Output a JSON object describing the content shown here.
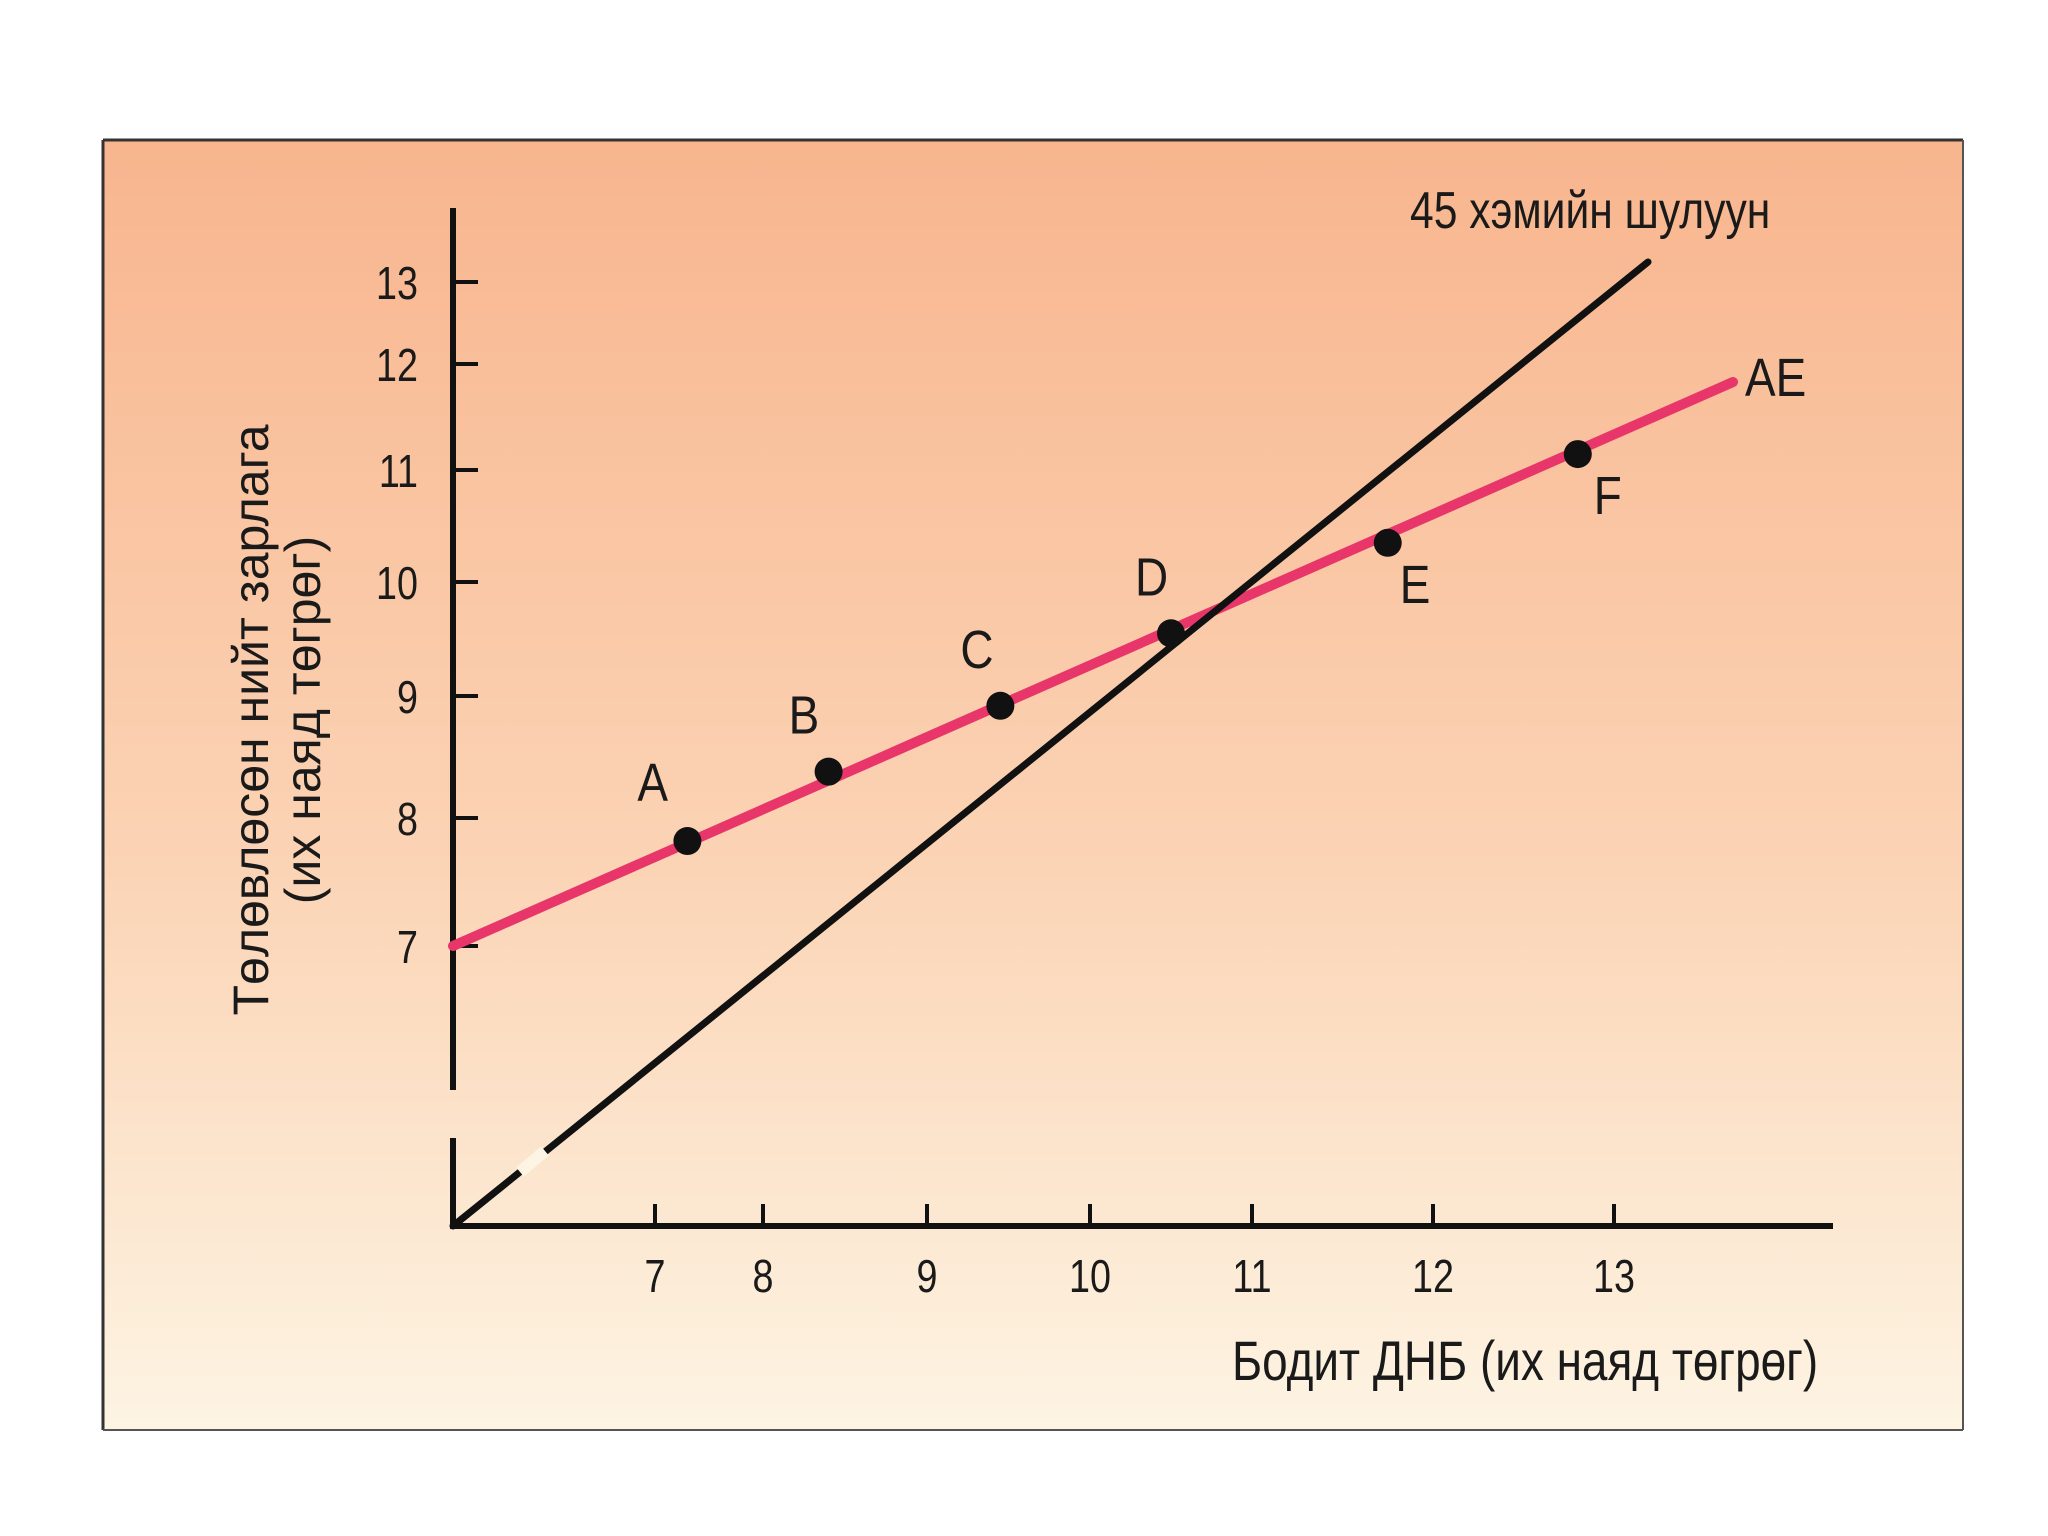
{
  "chart_data": {
    "type": "line",
    "x_axis": {
      "label": "Бодит ДНБ (их наяд төгрөг)",
      "ticks": [
        7,
        8,
        9,
        10,
        11,
        12,
        13
      ]
    },
    "y_axis": {
      "label_line1": "Төлөвлөсөн нийт зарлага",
      "label_line2": "(их наяд төгрөг)",
      "ticks": [
        7,
        8,
        9,
        10,
        11,
        12,
        13
      ]
    },
    "series": [
      {
        "name": "AE",
        "label": "AE",
        "color": "#e8366a",
        "points": [
          [
            5.9,
            7.0
          ],
          [
            13.7,
            11.8
          ]
        ]
      },
      {
        "name": "45-degree-line",
        "label": "45 хэмийн шулуун",
        "color": "#111111",
        "points": [
          [
            5.9,
            5.5
          ],
          [
            13.15,
            13.15
          ]
        ]
      }
    ],
    "points": [
      {
        "label": "A",
        "x": 7.3,
        "y": 7.82
      },
      {
        "label": "B",
        "x": 8.4,
        "y": 8.38
      },
      {
        "label": "C",
        "x": 9.45,
        "y": 8.92
      },
      {
        "label": "D",
        "x": 10.5,
        "y": 9.55
      },
      {
        "label": "E",
        "x": 11.75,
        "y": 10.35
      },
      {
        "label": "F",
        "x": 12.8,
        "y": 11.15
      }
    ],
    "colors": {
      "background_top": "#f8b58e",
      "background_bottom": "#fdf4e3",
      "ae_line": "#e8366a",
      "point": "#111111"
    }
  }
}
